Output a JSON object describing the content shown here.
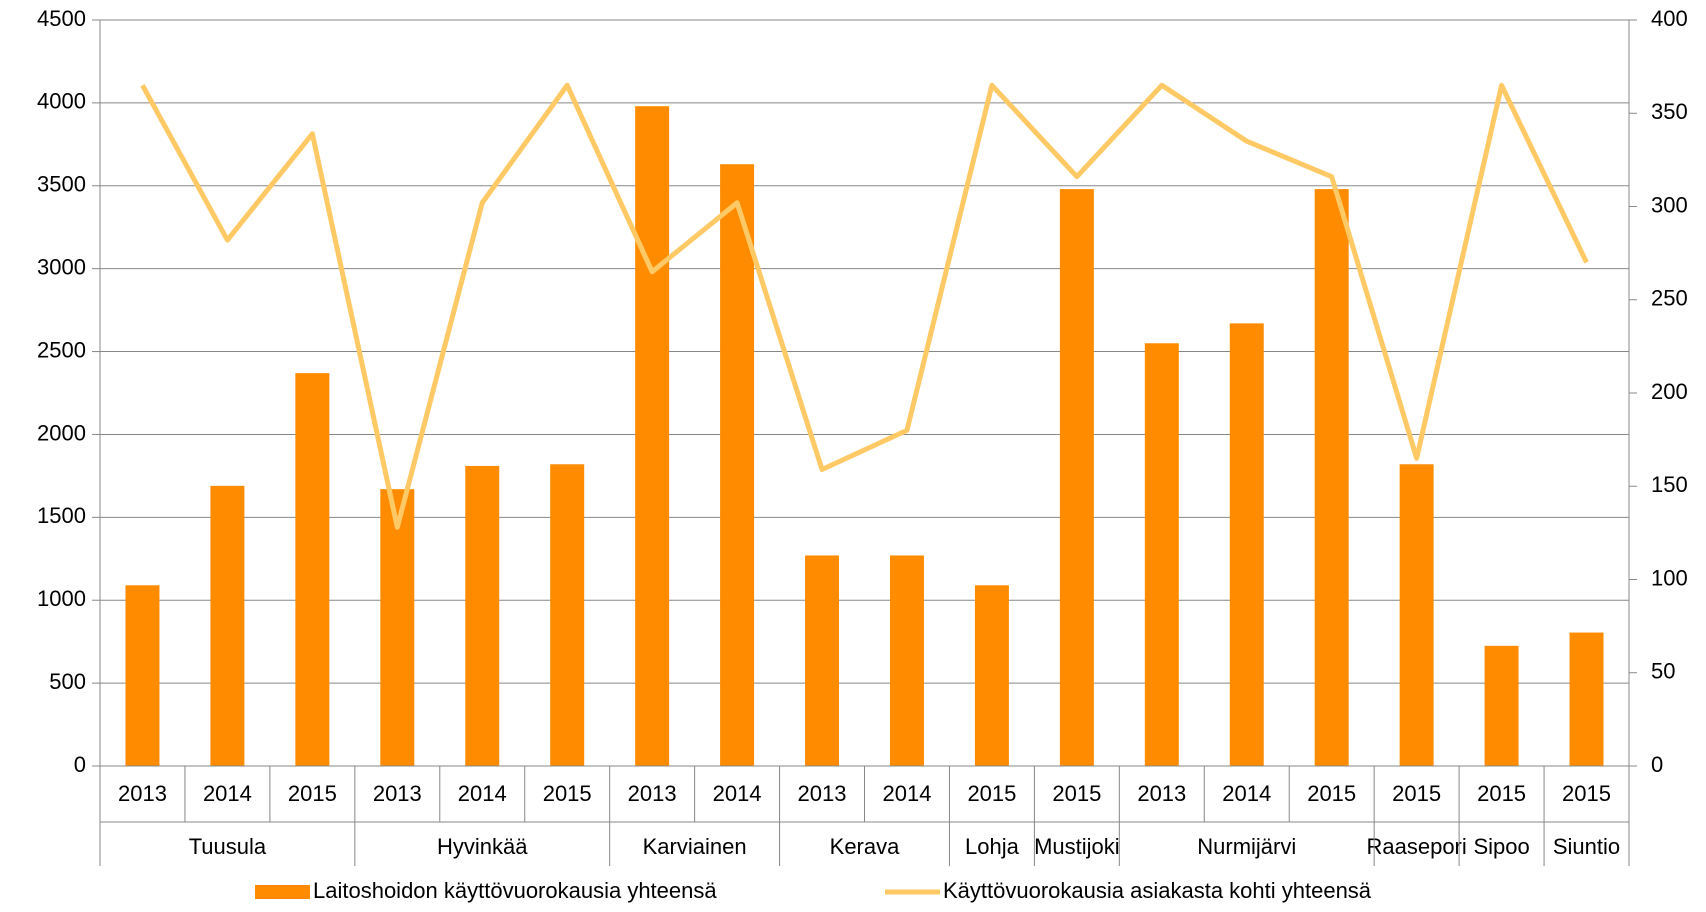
{
  "chart_data": {
    "type": "bar",
    "categories": [
      "2013",
      "2014",
      "2015",
      "2013",
      "2014",
      "2015",
      "2013",
      "2014",
      "2013",
      "2014",
      "2015",
      "2015",
      "2013",
      "2014",
      "2015",
      "2015",
      "2015",
      "2015"
    ],
    "groups": [
      {
        "name": "Tuusula",
        "span": 3
      },
      {
        "name": "Hyvinkää",
        "span": 3
      },
      {
        "name": "Karviainen",
        "span": 2
      },
      {
        "name": "Kerava",
        "span": 2
      },
      {
        "name": "Lohja",
        "span": 1
      },
      {
        "name": "Mustijoki",
        "span": 1
      },
      {
        "name": "Nurmijärvi",
        "span": 3
      },
      {
        "name": "Raasepori",
        "span": 1
      },
      {
        "name": "Sipoo",
        "span": 1
      },
      {
        "name": "Siuntio",
        "span": 1
      }
    ],
    "series": [
      {
        "name": "Laitoshoidon käyttövuorokausia yhteensä",
        "type": "bar",
        "color": "#ff8c00",
        "values": [
          1090,
          1690,
          2370,
          1670,
          1810,
          1820,
          3980,
          3630,
          1270,
          1270,
          1090,
          3480,
          2550,
          2670,
          3480,
          1820,
          725,
          805
        ]
      },
      {
        "name": "Käyttövuorokausia asiakasta kohti yhteensä",
        "type": "line",
        "axis": "y2",
        "color": "#ffc966",
        "values": [
          365,
          282,
          339,
          128,
          302,
          365,
          265,
          302,
          159,
          180,
          365,
          316,
          365,
          335,
          316,
          165,
          365,
          270
        ]
      }
    ],
    "ylim": [
      0,
      4500
    ],
    "yticks": [
      0,
      500,
      1000,
      1500,
      2000,
      2500,
      3000,
      3500,
      4000,
      4500
    ],
    "y2lim": [
      0,
      400
    ],
    "y2ticks": [
      0,
      50,
      100,
      150,
      200,
      250,
      300,
      350,
      400
    ],
    "grid": true,
    "legend": "bottom"
  }
}
